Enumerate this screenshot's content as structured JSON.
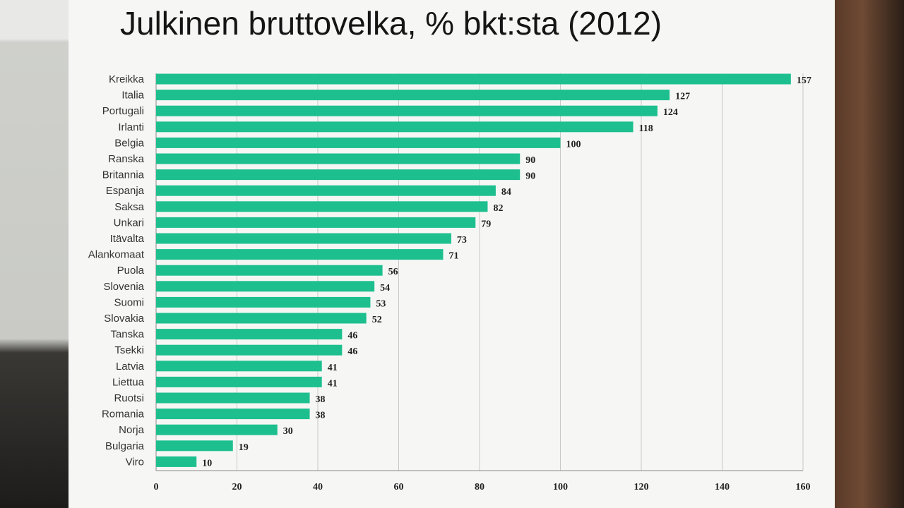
{
  "chart_data": {
    "type": "bar",
    "orientation": "horizontal",
    "title": "Julkinen bruttovelka, % bkt:sta (2012)",
    "categories": [
      "Kreikka",
      "Italia",
      "Portugali",
      "Irlanti",
      "Belgia",
      "Ranska",
      "Britannia",
      "Espanja",
      "Saksa",
      "Unkari",
      "Itävalta",
      "Alankomaat",
      "Puola",
      "Slovenia",
      "Suomi",
      "Slovakia",
      "Tanska",
      "Tsekki",
      "Latvia",
      "Liettua",
      "Ruotsi",
      "Romania",
      "Norja",
      "Bulgaria",
      "Viro"
    ],
    "values": [
      157,
      127,
      124,
      118,
      100,
      90,
      90,
      84,
      82,
      79,
      73,
      71,
      56,
      54,
      53,
      52,
      46,
      46,
      41,
      41,
      38,
      38,
      30,
      19,
      10
    ],
    "xlim": [
      0,
      160
    ],
    "xticks": [
      0,
      20,
      40,
      60,
      80,
      100,
      120,
      140,
      160
    ],
    "grid": true,
    "data_labels": true,
    "bar_color": "#1dbf8e"
  }
}
